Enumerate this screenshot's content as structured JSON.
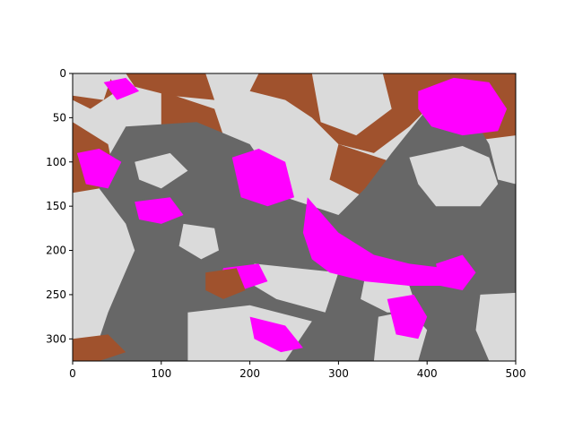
{
  "chart_data": {
    "type": "heatmap",
    "title": "",
    "xlabel": "",
    "ylabel": "",
    "xlim": [
      0,
      500
    ],
    "ylim": [
      325,
      0
    ],
    "image_extent": {
      "width": 500,
      "height": 325
    },
    "origin": "upper",
    "grid": false,
    "legend": "none",
    "x_ticks": [
      0,
      100,
      200,
      300,
      400,
      500
    ],
    "y_ticks": [
      0,
      50,
      100,
      150,
      200,
      250,
      300
    ],
    "x_tick_labels": [
      "0",
      "100",
      "200",
      "300",
      "400",
      "500"
    ],
    "y_tick_labels": [
      "0",
      "50",
      "100",
      "150",
      "200",
      "250",
      "300"
    ],
    "palette": {
      "gray": "#676767",
      "lightgray": "#dadada",
      "brown": "#a0522d",
      "magenta": "#ff00ff"
    },
    "background_class": "lightgray",
    "regions": [
      {
        "class": "brown",
        "points": [
          [
            0,
            0
          ],
          [
            40,
            0
          ],
          [
            50,
            20
          ],
          [
            20,
            40
          ],
          [
            0,
            30
          ]
        ]
      },
      {
        "class": "brown",
        "points": [
          [
            60,
            0
          ],
          [
            150,
            0
          ],
          [
            160,
            30
          ],
          [
            110,
            25
          ],
          [
            70,
            15
          ]
        ]
      },
      {
        "class": "brown",
        "points": [
          [
            210,
            0
          ],
          [
            400,
            0
          ],
          [
            410,
            30
          ],
          [
            380,
            60
          ],
          [
            340,
            90
          ],
          [
            300,
            80
          ],
          [
            270,
            50
          ],
          [
            240,
            30
          ],
          [
            200,
            20
          ]
        ]
      },
      {
        "class": "brown",
        "points": [
          [
            380,
            0
          ],
          [
            500,
            0
          ],
          [
            500,
            70
          ],
          [
            460,
            75
          ],
          [
            420,
            55
          ]
        ]
      },
      {
        "class": "brown",
        "points": [
          [
            0,
            55
          ],
          [
            40,
            80
          ],
          [
            45,
            105
          ],
          [
            30,
            130
          ],
          [
            0,
            135
          ]
        ]
      },
      {
        "class": "brown",
        "points": [
          [
            300,
            80
          ],
          [
            360,
            100
          ],
          [
            380,
            140
          ],
          [
            330,
            140
          ],
          [
            290,
            120
          ]
        ]
      },
      {
        "class": "brown",
        "points": [
          [
            460,
            160
          ],
          [
            500,
            165
          ],
          [
            500,
            230
          ],
          [
            470,
            215
          ],
          [
            455,
            190
          ]
        ]
      },
      {
        "class": "brown",
        "points": [
          [
            100,
            20
          ],
          [
            160,
            40
          ],
          [
            170,
            70
          ],
          [
            140,
            90
          ],
          [
            100,
            60
          ]
        ]
      },
      {
        "class": "gray",
        "points": [
          [
            60,
            60
          ],
          [
            140,
            55
          ],
          [
            200,
            80
          ],
          [
            240,
            140
          ],
          [
            300,
            160
          ],
          [
            330,
            130
          ],
          [
            360,
            90
          ],
          [
            400,
            40
          ],
          [
            440,
            30
          ],
          [
            470,
            80
          ],
          [
            480,
            120
          ],
          [
            500,
            125
          ],
          [
            500,
            325
          ],
          [
            0,
            325
          ],
          [
            0,
            240
          ],
          [
            30,
            215
          ],
          [
            70,
            200
          ],
          [
            60,
            170
          ],
          [
            30,
            130
          ],
          [
            40,
            95
          ]
        ]
      },
      {
        "class": "lightgray",
        "points": [
          [
            0,
            190
          ],
          [
            40,
            185
          ],
          [
            70,
            200
          ],
          [
            55,
            235
          ],
          [
            40,
            270
          ],
          [
            30,
            300
          ],
          [
            0,
            305
          ]
        ]
      },
      {
        "class": "lightgray",
        "points": [
          [
            380,
            95
          ],
          [
            440,
            82
          ],
          [
            470,
            95
          ],
          [
            480,
            125
          ],
          [
            460,
            150
          ],
          [
            410,
            150
          ],
          [
            390,
            125
          ]
        ]
      },
      {
        "class": "lightgray",
        "points": [
          [
            130,
            270
          ],
          [
            200,
            262
          ],
          [
            270,
            280
          ],
          [
            240,
            325
          ],
          [
            130,
            325
          ]
        ]
      },
      {
        "class": "lightgray",
        "points": [
          [
            205,
            215
          ],
          [
            300,
            225
          ],
          [
            285,
            270
          ],
          [
            230,
            255
          ],
          [
            205,
            240
          ]
        ]
      },
      {
        "class": "lightgray",
        "points": [
          [
            0,
            0
          ],
          [
            45,
            0
          ],
          [
            35,
            30
          ],
          [
            0,
            25
          ]
        ]
      },
      {
        "class": "lightgray",
        "points": [
          [
            270,
            0
          ],
          [
            350,
            0
          ],
          [
            360,
            40
          ],
          [
            320,
            70
          ],
          [
            280,
            55
          ]
        ]
      },
      {
        "class": "lightgray",
        "points": [
          [
            125,
            170
          ],
          [
            160,
            175
          ],
          [
            165,
            200
          ],
          [
            145,
            210
          ],
          [
            120,
            195
          ]
        ]
      },
      {
        "class": "lightgray",
        "points": [
          [
            345,
            275
          ],
          [
            380,
            268
          ],
          [
            400,
            290
          ],
          [
            390,
            325
          ],
          [
            340,
            325
          ]
        ]
      },
      {
        "class": "lightgray",
        "points": [
          [
            460,
            250
          ],
          [
            500,
            248
          ],
          [
            500,
            325
          ],
          [
            470,
            325
          ],
          [
            455,
            290
          ]
        ]
      },
      {
        "class": "lightgray",
        "points": [
          [
            70,
            100
          ],
          [
            110,
            90
          ],
          [
            130,
            110
          ],
          [
            100,
            130
          ],
          [
            75,
            120
          ]
        ]
      },
      {
        "class": "lightgray",
        "points": [
          [
            330,
            230
          ],
          [
            380,
            240
          ],
          [
            390,
            270
          ],
          [
            355,
            270
          ],
          [
            325,
            255
          ]
        ]
      },
      {
        "class": "magenta",
        "points": [
          [
            265,
            140
          ],
          [
            300,
            180
          ],
          [
            340,
            205
          ],
          [
            380,
            215
          ],
          [
            420,
            220
          ],
          [
            450,
            225
          ],
          [
            430,
            240
          ],
          [
            380,
            240
          ],
          [
            330,
            235
          ],
          [
            290,
            225
          ],
          [
            270,
            210
          ],
          [
            260,
            180
          ]
        ]
      },
      {
        "class": "magenta",
        "points": [
          [
            180,
            95
          ],
          [
            210,
            85
          ],
          [
            240,
            100
          ],
          [
            250,
            140
          ],
          [
            220,
            150
          ],
          [
            190,
            140
          ]
        ]
      },
      {
        "class": "magenta",
        "points": [
          [
            390,
            20
          ],
          [
            430,
            5
          ],
          [
            470,
            10
          ],
          [
            490,
            40
          ],
          [
            480,
            65
          ],
          [
            440,
            70
          ],
          [
            405,
            60
          ],
          [
            390,
            40
          ]
        ]
      },
      {
        "class": "magenta",
        "points": [
          [
            5,
            90
          ],
          [
            30,
            85
          ],
          [
            55,
            100
          ],
          [
            40,
            130
          ],
          [
            15,
            125
          ]
        ]
      },
      {
        "class": "magenta",
        "points": [
          [
            70,
            145
          ],
          [
            110,
            140
          ],
          [
            125,
            160
          ],
          [
            100,
            170
          ],
          [
            75,
            165
          ]
        ]
      },
      {
        "class": "magenta",
        "points": [
          [
            35,
            10
          ],
          [
            60,
            5
          ],
          [
            75,
            20
          ],
          [
            50,
            30
          ]
        ]
      },
      {
        "class": "magenta",
        "points": [
          [
            170,
            220
          ],
          [
            210,
            215
          ],
          [
            220,
            235
          ],
          [
            190,
            245
          ],
          [
            165,
            235
          ]
        ]
      },
      {
        "class": "magenta",
        "points": [
          [
            355,
            255
          ],
          [
            385,
            250
          ],
          [
            400,
            275
          ],
          [
            390,
            300
          ],
          [
            365,
            295
          ]
        ]
      },
      {
        "class": "magenta",
        "points": [
          [
            200,
            275
          ],
          [
            240,
            285
          ],
          [
            260,
            310
          ],
          [
            235,
            315
          ],
          [
            205,
            300
          ]
        ]
      },
      {
        "class": "magenta",
        "points": [
          [
            410,
            215
          ],
          [
            440,
            205
          ],
          [
            455,
            225
          ],
          [
            440,
            245
          ],
          [
            415,
            240
          ]
        ]
      },
      {
        "class": "brown",
        "points": [
          [
            150,
            225
          ],
          [
            185,
            220
          ],
          [
            195,
            245
          ],
          [
            170,
            255
          ],
          [
            150,
            245
          ]
        ]
      },
      {
        "class": "brown",
        "points": [
          [
            0,
            300
          ],
          [
            40,
            295
          ],
          [
            60,
            315
          ],
          [
            30,
            325
          ],
          [
            0,
            325
          ]
        ]
      }
    ]
  }
}
